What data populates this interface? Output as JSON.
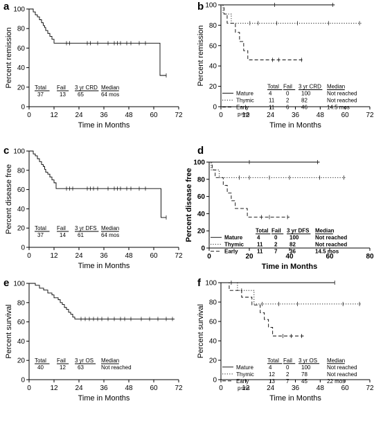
{
  "chart_data": [
    {
      "panel": "a",
      "type": "line",
      "step": true,
      "xlabel": "Time in Months",
      "ylabel": "Percent remission",
      "xlim": [
        0,
        72
      ],
      "ylim": [
        0,
        100
      ],
      "xticks": [
        "0",
        "12",
        "24",
        "36",
        "48",
        "60",
        "72"
      ],
      "yticks": [
        "0",
        "20",
        "40",
        "60",
        "80",
        "100"
      ],
      "series": [
        {
          "dash": "solid",
          "x": [
            0,
            2,
            3,
            4,
            5,
            6,
            6.8,
            7.5,
            8,
            9,
            10,
            11,
            12,
            63,
            63,
            66
          ],
          "y": [
            100,
            97,
            94,
            92,
            89,
            86,
            83,
            81,
            78,
            75,
            72,
            69,
            65,
            65,
            32,
            32
          ],
          "censor": [
            [
              18,
              65
            ],
            [
              19.5,
              65
            ],
            [
              28,
              65
            ],
            [
              29.5,
              65
            ],
            [
              33,
              65
            ],
            [
              38,
              65
            ],
            [
              41,
              65
            ],
            [
              42.5,
              65
            ],
            [
              44,
              65
            ],
            [
              47,
              65
            ],
            [
              49,
              65
            ],
            [
              53,
              65
            ],
            [
              56,
              65
            ],
            [
              66,
              32
            ]
          ]
        }
      ],
      "stats": {
        "headers": [
          "Total",
          "Fail",
          "3 yr CRD",
          "Median"
        ],
        "rows": [
          [
            "37",
            "13",
            "65",
            "64 mos"
          ]
        ]
      }
    },
    {
      "panel": "b",
      "type": "line",
      "step": true,
      "xlabel": "Time in Months",
      "ylabel": "Percent remission",
      "xlim": [
        0,
        72
      ],
      "ylim": [
        0,
        100
      ],
      "xticks": [
        "0",
        "12",
        "24",
        "36",
        "48",
        "60",
        "72"
      ],
      "yticks": [
        "0",
        "20",
        "40",
        "60",
        "80",
        "100"
      ],
      "series": [
        {
          "name": "Mature",
          "dash": "solid",
          "x": [
            0,
            55
          ],
          "y": [
            100,
            100
          ],
          "censor": [
            [
              26,
              100
            ],
            [
              54,
              100
            ]
          ]
        },
        {
          "name": "Thymic",
          "dash": "dotted",
          "x": [
            0,
            1,
            3,
            5,
            68
          ],
          "y": [
            100,
            91,
            91,
            82,
            82
          ],
          "censor": [
            [
              14,
              82
            ],
            [
              18,
              82
            ],
            [
              27,
              82
            ],
            [
              37,
              82
            ],
            [
              52,
              82
            ],
            [
              67,
              82
            ]
          ]
        },
        {
          "name": "Early",
          "dash": "dashed",
          "x": [
            0,
            1.5,
            3,
            5,
            7,
            9,
            11,
            13,
            40
          ],
          "y": [
            100,
            91,
            82,
            82,
            73,
            64,
            55,
            46,
            46
          ],
          "censor": [
            [
              25,
              46
            ],
            [
              28,
              46
            ],
            [
              39,
              46
            ]
          ]
        }
      ],
      "stats": {
        "headers": [
          "Total",
          "Fail",
          "3 yr CRD",
          "Median"
        ],
        "rows": [
          [
            "Mature",
            "4",
            "0",
            "100",
            "Not reached"
          ],
          [
            "Thymic",
            "11",
            "2",
            "82",
            "Not reached"
          ],
          [
            "Early",
            "11",
            "6",
            "46",
            "14.5 mos"
          ]
        ]
      },
      "note": "p=ns"
    },
    {
      "panel": "c",
      "type": "line",
      "step": true,
      "xlabel": "Time in Months",
      "ylabel": "Percent disease free",
      "xlim": [
        0,
        72
      ],
      "ylim": [
        0,
        100
      ],
      "xticks": [
        "0",
        "12",
        "24",
        "36",
        "48",
        "60",
        "72"
      ],
      "yticks": [
        "0",
        "20",
        "40",
        "60",
        "80",
        "100"
      ],
      "series": [
        {
          "dash": "solid",
          "x": [
            0,
            2,
            3,
            4,
            5,
            6,
            6.8,
            7.5,
            8,
            9,
            10,
            11,
            12,
            13,
            63.5,
            63.5,
            66
          ],
          "y": [
            100,
            97,
            95,
            92,
            89,
            86,
            84,
            81,
            78,
            76,
            73,
            70,
            67,
            61,
            61,
            31,
            31
          ],
          "censor": [
            [
              18,
              61
            ],
            [
              19.5,
              61
            ],
            [
              21,
              61
            ],
            [
              28,
              61
            ],
            [
              29.5,
              61
            ],
            [
              31,
              61
            ],
            [
              33,
              61
            ],
            [
              38,
              61
            ],
            [
              41,
              61
            ],
            [
              42.5,
              61
            ],
            [
              44,
              61
            ],
            [
              47,
              61
            ],
            [
              49,
              61
            ],
            [
              53,
              61
            ],
            [
              56,
              61
            ],
            [
              66,
              31
            ]
          ]
        }
      ],
      "stats": {
        "headers": [
          "Total",
          "Fail",
          "3 yr DFS",
          "Median"
        ],
        "rows": [
          [
            "37",
            "14",
            "61",
            "64 mos"
          ]
        ]
      }
    },
    {
      "panel": "d",
      "type": "line",
      "step": true,
      "xlabel": "Time in Months",
      "ylabel": "Percent disease free",
      "xlim": [
        0,
        80
      ],
      "ylim": [
        0,
        100
      ],
      "xticks": [
        "0",
        "20",
        "40",
        "60",
        "80"
      ],
      "yticks": [
        "0",
        "20",
        "40",
        "60",
        "80",
        "100"
      ],
      "series": [
        {
          "name": "Mature",
          "dash": "solid",
          "x": [
            0,
            55
          ],
          "y": [
            100,
            100
          ],
          "censor": [
            [
              20,
              100
            ],
            [
              54,
              100
            ]
          ]
        },
        {
          "name": "Thymic",
          "dash": "dotted",
          "x": [
            0,
            1,
            3,
            5,
            68
          ],
          "y": [
            100,
            91,
            91,
            82,
            82
          ],
          "censor": [
            [
              15,
              82
            ],
            [
              20,
              82
            ],
            [
              30,
              82
            ],
            [
              40,
              82
            ],
            [
              55,
              82
            ],
            [
              67,
              82
            ]
          ]
        },
        {
          "name": "Early",
          "dash": "dashed",
          "x": [
            0,
            1.5,
            3,
            5,
            7,
            9,
            11,
            13,
            19,
            40
          ],
          "y": [
            100,
            91,
            82,
            82,
            73,
            64,
            55,
            46,
            36,
            36
          ],
          "censor": [
            [
              26,
              36
            ],
            [
              30,
              36
            ],
            [
              39,
              36
            ]
          ]
        }
      ],
      "stats": {
        "headers": [
          "Total",
          "Fail",
          "3 yr DFS",
          "Median"
        ],
        "rows": [
          [
            "Mature",
            "4",
            "0",
            "100",
            "Not reached"
          ],
          [
            "Thymic",
            "11",
            "2",
            "82",
            "Not reached"
          ],
          [
            "Early",
            "11",
            "7",
            "36",
            "14.5 mos"
          ]
        ]
      }
    },
    {
      "panel": "e",
      "type": "line",
      "step": true,
      "xlabel": "Time in Months",
      "ylabel": "Percent survival",
      "xlim": [
        0,
        72
      ],
      "ylim": [
        0,
        100
      ],
      "xticks": [
        "0",
        "12",
        "24",
        "36",
        "48",
        "60",
        "72"
      ],
      "yticks": [
        "0",
        "20",
        "40",
        "60",
        "80",
        "100"
      ],
      "series": [
        {
          "dash": "solid",
          "x": [
            0,
            3,
            5,
            7,
            9,
            11,
            12,
            14,
            15,
            16,
            17,
            18,
            19,
            20,
            21,
            22,
            70
          ],
          "y": [
            100,
            98,
            95,
            93,
            90,
            88,
            85,
            83,
            80,
            78,
            75,
            73,
            70,
            68,
            65,
            63,
            63
          ],
          "censor": [
            [
              25,
              63
            ],
            [
              27,
              63
            ],
            [
              29,
              63
            ],
            [
              31,
              63
            ],
            [
              33,
              63
            ],
            [
              35,
              63
            ],
            [
              38,
              63
            ],
            [
              41,
              63
            ],
            [
              44,
              63
            ],
            [
              46,
              63
            ],
            [
              49,
              63
            ],
            [
              54,
              63
            ],
            [
              58,
              63
            ],
            [
              62,
              63
            ],
            [
              66,
              63
            ],
            [
              69,
              63
            ]
          ]
        }
      ],
      "stats": {
        "headers": [
          "Total",
          "Fail",
          "3 yr OS",
          "Median"
        ],
        "rows": [
          [
            "40",
            "12",
            "63",
            "Not reached"
          ]
        ]
      }
    },
    {
      "panel": "f",
      "type": "line",
      "step": true,
      "xlabel": "Time in Months",
      "ylabel": "Percent survival",
      "xlim": [
        0,
        72
      ],
      "ylim": [
        0,
        100
      ],
      "xticks": [
        "0",
        "12",
        "24",
        "36",
        "48",
        "60",
        "72"
      ],
      "yticks": [
        "0",
        "20",
        "40",
        "60",
        "80",
        "100"
      ],
      "series": [
        {
          "name": "Mature",
          "dash": "solid",
          "x": [
            0,
            55
          ],
          "y": [
            100,
            100
          ],
          "censor": [
            [
              5,
              100
            ],
            [
              55,
              100
            ]
          ]
        },
        {
          "name": "Thymic",
          "dash": "dotted",
          "x": [
            0,
            8,
            12,
            16,
            68
          ],
          "y": [
            100,
            92,
            92,
            78,
            78
          ],
          "censor": [
            [
              10,
              92
            ],
            [
              20,
              78
            ],
            [
              28,
              78
            ],
            [
              37,
              78
            ],
            [
              59,
              78
            ],
            [
              67,
              78
            ]
          ]
        },
        {
          "name": "Early",
          "dash": "dashed",
          "x": [
            0,
            4,
            10,
            15,
            19,
            21,
            23,
            25,
            40
          ],
          "y": [
            100,
            92,
            85,
            77,
            69,
            62,
            54,
            45,
            45
          ],
          "censor": [
            [
              30,
              45
            ],
            [
              34,
              45
            ],
            [
              39,
              45
            ]
          ]
        }
      ],
      "stats": {
        "headers": [
          "Total",
          "Fail",
          "3 yr OS",
          "Median"
        ],
        "rows": [
          [
            "Mature",
            "4",
            "0",
            "100",
            "Not reached"
          ],
          [
            "Thymic",
            "12",
            "2",
            "78",
            "Not reached"
          ],
          [
            "Early",
            "13",
            "7",
            "45",
            "22 mos"
          ]
        ]
      },
      "note": "p=ns"
    }
  ]
}
